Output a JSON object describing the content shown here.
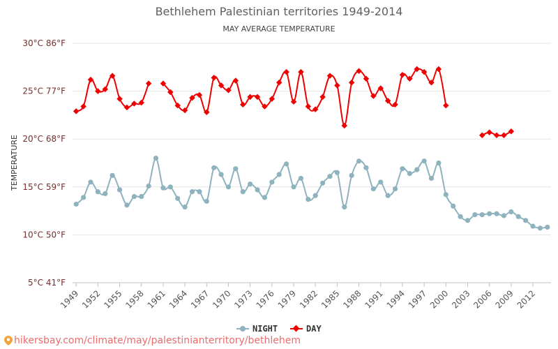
{
  "title": "Bethlehem Palestinian territories 1949-2014",
  "subtitle": "MAY AVERAGE TEMPERATURE",
  "source": "hikersbay.com/climate/may/palestinianterritory/bethlehem",
  "colors": {
    "night": "#8fb3be",
    "day": "#ee0000",
    "grid": "#e6e6e6",
    "axis": "#c0c0c0",
    "label_tick": "#7a2d2d"
  },
  "chart_data": {
    "type": "line",
    "ylabel": "TEMPERATURE",
    "ylim": [
      5,
      30
    ],
    "y_ticks": [
      {
        "value": 30,
        "label": "30°C 86°F"
      },
      {
        "value": 25,
        "label": "25°C 77°F"
      },
      {
        "value": 20,
        "label": "20°C 68°F"
      },
      {
        "value": 15,
        "label": "15°C 59°F"
      },
      {
        "value": 10,
        "label": "10°C 50°F"
      },
      {
        "value": 5,
        "label": "5°C 41°F"
      }
    ],
    "x": [
      1949,
      1950,
      1951,
      1952,
      1953,
      1954,
      1955,
      1956,
      1957,
      1958,
      1959,
      1960,
      1961,
      1962,
      1963,
      1964,
      1965,
      1966,
      1967,
      1968,
      1969,
      1970,
      1971,
      1972,
      1973,
      1974,
      1975,
      1976,
      1977,
      1978,
      1979,
      1980,
      1981,
      1982,
      1983,
      1984,
      1985,
      1986,
      1987,
      1988,
      1989,
      1990,
      1991,
      1992,
      1993,
      1994,
      1995,
      1996,
      1997,
      1998,
      1999,
      2000,
      2001,
      2002,
      2003,
      2004,
      2005,
      2006,
      2007,
      2008,
      2009,
      2010,
      2011,
      2012,
      2013,
      2014
    ],
    "x_tick_labels": [
      "1949",
      "1952",
      "1955",
      "1958",
      "1961",
      "1964",
      "1967",
      "1970",
      "1973",
      "1976",
      "1979",
      "1982",
      "1985",
      "1988",
      "1991",
      "1994",
      "1997",
      "2000",
      "2003",
      "2006",
      "2009",
      "2012"
    ],
    "legend": "bottom-center",
    "grid": true,
    "series": [
      {
        "name": "NIGHT",
        "values": [
          13.2,
          13.9,
          15.5,
          14.5,
          14.3,
          16.2,
          14.7,
          13.1,
          14.0,
          14.0,
          15.1,
          18.0,
          14.9,
          15.0,
          13.8,
          12.9,
          14.5,
          14.5,
          13.5,
          17.0,
          16.3,
          15.0,
          16.9,
          14.5,
          15.3,
          14.7,
          13.9,
          15.5,
          16.3,
          17.4,
          15.0,
          15.9,
          13.7,
          14.1,
          15.4,
          16.1,
          16.5,
          12.9,
          16.2,
          17.7,
          17.0,
          14.8,
          15.5,
          14.1,
          14.8,
          16.9,
          16.4,
          16.8,
          17.7,
          15.9,
          17.5,
          14.2,
          13.0,
          11.9,
          11.5,
          12.1,
          12.1,
          12.2,
          12.2,
          12.0,
          12.4,
          11.9,
          11.5,
          10.9,
          10.7,
          10.8
        ]
      },
      {
        "name": "DAY",
        "values": [
          22.9,
          23.4,
          26.2,
          25.0,
          25.2,
          26.6,
          24.2,
          23.3,
          23.7,
          23.8,
          25.8,
          null,
          25.8,
          24.9,
          23.5,
          23.0,
          24.3,
          24.6,
          22.8,
          26.4,
          25.6,
          25.1,
          26.1,
          23.6,
          24.4,
          24.4,
          23.4,
          24.2,
          25.9,
          27.0,
          23.9,
          27.0,
          23.4,
          23.1,
          24.4,
          26.6,
          25.6,
          21.4,
          25.9,
          27.1,
          26.3,
          24.5,
          25.3,
          24.0,
          23.6,
          26.7,
          26.3,
          27.3,
          27.0,
          25.9,
          27.3,
          23.5,
          null,
          null,
          null,
          null,
          20.4,
          20.7,
          20.4,
          20.4,
          20.8,
          null,
          null,
          null,
          null,
          null
        ]
      }
    ]
  }
}
